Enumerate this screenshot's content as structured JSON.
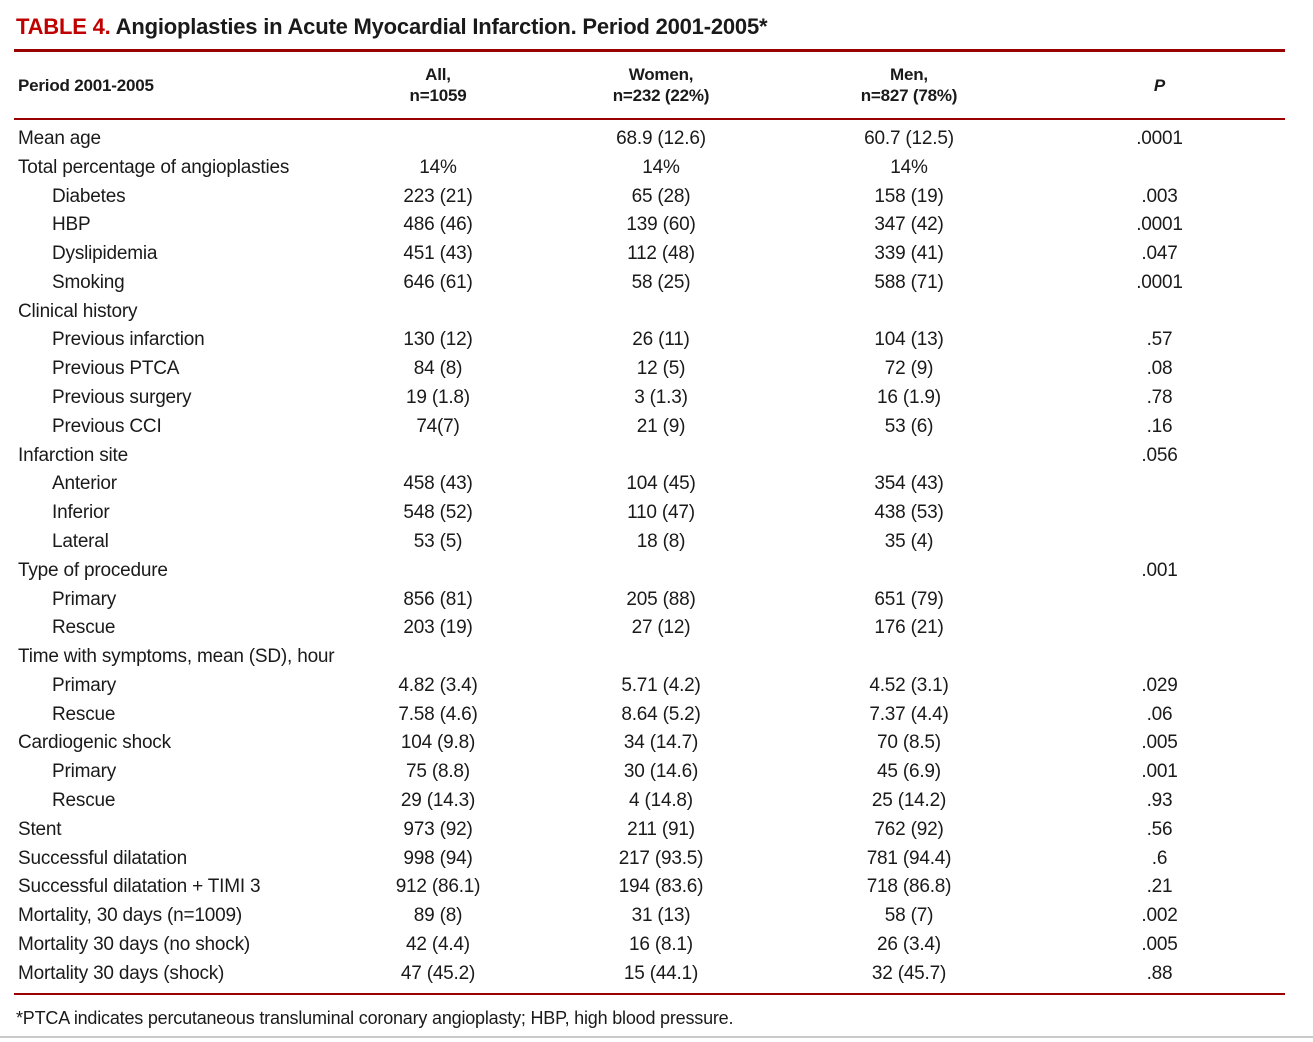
{
  "colors": {
    "title_tag_red": "#c00000",
    "rule_red": "#9b0000",
    "text_black": "#1a1a1a"
  },
  "title": {
    "tag": "TABLE 4.",
    "text": "Angioplasties in Acute Myocardial Infarction. Period 2001-2005*"
  },
  "table": {
    "header": {
      "col_label": "Period 2001-2005",
      "col_all": [
        "All,",
        "n=1059"
      ],
      "col_women": [
        "Women,",
        "n=232 (22%)"
      ],
      "col_men": [
        "Men,",
        "n=827 (78%)"
      ],
      "col_p": "P"
    },
    "rows": [
      {
        "label": "Mean age",
        "indent": 0,
        "all": "",
        "women": "68.9 (12.6)",
        "men": "60.7 (12.5)",
        "p": ".0001"
      },
      {
        "label": "Total percentage of angioplasties",
        "indent": 0,
        "all": "14%",
        "women": "14%",
        "men": "14%",
        "p": ""
      },
      {
        "label": "Diabetes",
        "indent": 1,
        "all": "223 (21)",
        "women": "65 (28)",
        "men": "158 (19)",
        "p": ".003"
      },
      {
        "label": "HBP",
        "indent": 1,
        "all": "486 (46)",
        "women": "139 (60)",
        "men": "347 (42)",
        "p": ".0001"
      },
      {
        "label": "Dyslipidemia",
        "indent": 1,
        "all": "451 (43)",
        "women": "112 (48)",
        "men": "339 (41)",
        "p": ".047"
      },
      {
        "label": "Smoking",
        "indent": 1,
        "all": "646 (61)",
        "women": "58 (25)",
        "men": "588 (71)",
        "p": ".0001"
      },
      {
        "label": "Clinical history",
        "indent": 0,
        "all": "",
        "women": "",
        "men": "",
        "p": ""
      },
      {
        "label": "Previous infarction",
        "indent": 1,
        "all": "130 (12)",
        "women": "26 (11)",
        "men": "104 (13)",
        "p": ".57"
      },
      {
        "label": "Previous PTCA",
        "indent": 1,
        "all": "84 (8)",
        "women": "12 (5)",
        "men": "72 (9)",
        "p": ".08"
      },
      {
        "label": "Previous surgery",
        "indent": 1,
        "all": "19 (1.8)",
        "women": "3 (1.3)",
        "men": "16 (1.9)",
        "p": ".78"
      },
      {
        "label": "Previous CCI",
        "indent": 1,
        "all": "74(7)",
        "women": "21 (9)",
        "men": "53 (6)",
        "p": ".16"
      },
      {
        "label": "Infarction site",
        "indent": 0,
        "all": "",
        "women": "",
        "men": "",
        "p": ".056"
      },
      {
        "label": "Anterior",
        "indent": 1,
        "all": "458 (43)",
        "women": "104 (45)",
        "men": "354 (43)",
        "p": ""
      },
      {
        "label": "Inferior",
        "indent": 1,
        "all": "548 (52)",
        "women": "110 (47)",
        "men": "438 (53)",
        "p": ""
      },
      {
        "label": "Lateral",
        "indent": 1,
        "all": "53 (5)",
        "women": "18 (8)",
        "men": "35 (4)",
        "p": ""
      },
      {
        "label": "Type of procedure",
        "indent": 0,
        "all": "",
        "women": "",
        "men": "",
        "p": ".001"
      },
      {
        "label": "Primary",
        "indent": 1,
        "all": "856 (81)",
        "women": "205 (88)",
        "men": "651 (79)",
        "p": ""
      },
      {
        "label": "Rescue",
        "indent": 1,
        "all": "203 (19)",
        "women": "27 (12)",
        "men": "176 (21)",
        "p": ""
      },
      {
        "label": "Time with symptoms, mean (SD), hour",
        "indent": 0,
        "all": "",
        "women": "",
        "men": "",
        "p": ""
      },
      {
        "label": "Primary",
        "indent": 1,
        "all": "4.82 (3.4)",
        "women": "5.71 (4.2)",
        "men": "4.52 (3.1)",
        "p": ".029"
      },
      {
        "label": "Rescue",
        "indent": 1,
        "all": "7.58 (4.6)",
        "women": "8.64 (5.2)",
        "men": "7.37 (4.4)",
        "p": ".06"
      },
      {
        "label": "Cardiogenic shock",
        "indent": 0,
        "all": "104 (9.8)",
        "women": "34 (14.7)",
        "men": "70 (8.5)",
        "p": ".005"
      },
      {
        "label": "Primary",
        "indent": 1,
        "all": "75 (8.8)",
        "women": "30 (14.6)",
        "men": "45 (6.9)",
        "p": ".001"
      },
      {
        "label": "Rescue",
        "indent": 1,
        "all": "29 (14.3)",
        "women": "4 (14.8)",
        "men": "25 (14.2)",
        "p": ".93"
      },
      {
        "label": "Stent",
        "indent": 0,
        "all": "973 (92)",
        "women": "211 (91)",
        "men": "762 (92)",
        "p": ".56"
      },
      {
        "label": "Successful dilatation",
        "indent": 0,
        "all": "998 (94)",
        "women": "217 (93.5)",
        "men": "781 (94.4)",
        "p": ".6"
      },
      {
        "label": "Successful dilatation + TIMI 3",
        "indent": 0,
        "all": "912 (86.1)",
        "women": "194 (83.6)",
        "men": "718 (86.8)",
        "p": ".21"
      },
      {
        "label": "Mortality, 30 days (n=1009)",
        "indent": 0,
        "all": "89 (8)",
        "women": "31 (13)",
        "men": "58 (7)",
        "p": ".002"
      },
      {
        "label": "Mortality 30 days (no shock)",
        "indent": 0,
        "all": "42 (4.4)",
        "women": "16 (8.1)",
        "men": "26 (3.4)",
        "p": ".005"
      },
      {
        "label": "Mortality 30 days (shock)",
        "indent": 0,
        "all": "47 (45.2)",
        "women": "15 (44.1)",
        "men": "32 (45.7)",
        "p": ".88"
      }
    ]
  },
  "footnote": "*PTCA indicates percutaneous transluminal coronary angioplasty; HBP, high blood pressure."
}
